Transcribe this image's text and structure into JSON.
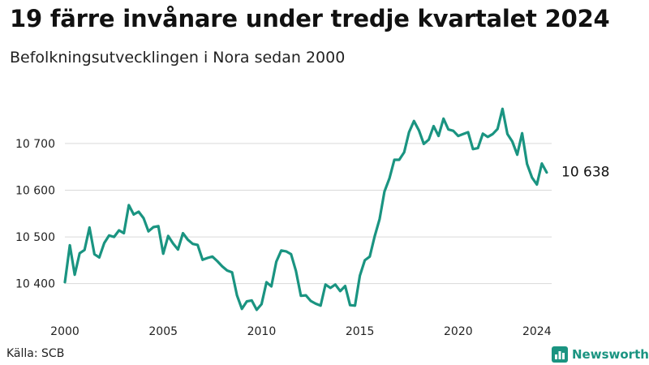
{
  "title": "19 färre invånare under tredje kvartalet 2024",
  "subtitle": "Befolkningsutvecklingen i Nora sedan 2000",
  "source": "Källa: SCB",
  "brand": {
    "name": "Newsworthy",
    "color": "#1a9481"
  },
  "colors": {
    "line": "#1a9481",
    "grid": "#d9d9d9"
  },
  "chart_data": {
    "type": "line",
    "title": "19 färre invånare under tredje kvartalet 2024",
    "subtitle": "Befolkningsutvecklingen i Nora sedan 2000",
    "xlabel": "",
    "ylabel": "",
    "grid": true,
    "xlim": [
      2000,
      2024.75
    ],
    "ylim": [
      10330,
      10790
    ],
    "x_ticks": [
      2000,
      2005,
      2010,
      2015,
      2020,
      2024
    ],
    "x_tick_labels": [
      "2000",
      "2005",
      "2010",
      "2015",
      "2020",
      "2024"
    ],
    "y_ticks": [
      10400,
      10500,
      10600,
      10700
    ],
    "y_tick_labels": [
      "10 400",
      "10 500",
      "10 600",
      "10 700"
    ],
    "end_label": "10 638",
    "x": [
      2000,
      2000.25,
      2000.5,
      2000.75,
      2001,
      2001.25,
      2001.5,
      2001.75,
      2002,
      2002.25,
      2002.5,
      2002.75,
      2003,
      2003.25,
      2003.5,
      2003.75,
      2004,
      2004.25,
      2004.5,
      2004.75,
      2005,
      2005.25,
      2005.5,
      2005.75,
      2006,
      2006.25,
      2006.5,
      2006.75,
      2007,
      2007.25,
      2007.5,
      2007.75,
      2008,
      2008.25,
      2008.5,
      2008.75,
      2009,
      2009.25,
      2009.5,
      2009.75,
      2010,
      2010.25,
      2010.5,
      2010.75,
      2011,
      2011.25,
      2011.5,
      2011.75,
      2012,
      2012.25,
      2012.5,
      2012.75,
      2013,
      2013.25,
      2013.5,
      2013.75,
      2014,
      2014.25,
      2014.5,
      2014.75,
      2015,
      2015.25,
      2015.5,
      2015.75,
      2016,
      2016.25,
      2016.5,
      2016.75,
      2017,
      2017.25,
      2017.5,
      2017.75,
      2018,
      2018.25,
      2018.5,
      2018.75,
      2019,
      2019.25,
      2019.5,
      2019.75,
      2020,
      2020.25,
      2020.5,
      2020.75,
      2021,
      2021.25,
      2021.5,
      2021.75,
      2022,
      2022.25,
      2022.5,
      2022.75,
      2023,
      2023.25,
      2023.5,
      2023.75,
      2024,
      2024.25,
      2024.5
    ],
    "series": [
      {
        "values": [
          10403,
          10482,
          10419,
          10465,
          10472,
          10520,
          10463,
          10456,
          10487,
          10503,
          10500,
          10514,
          10508,
          10568,
          10548,
          10554,
          10540,
          10512,
          10521,
          10523,
          10464,
          10502,
          10486,
          10473,
          10508,
          10494,
          10485,
          10483,
          10451,
          10455,
          10458,
          10448,
          10437,
          10428,
          10424,
          10375,
          10346,
          10362,
          10364,
          10344,
          10356,
          10403,
          10394,
          10447,
          10471,
          10469,
          10463,
          10427,
          10374,
          10375,
          10363,
          10357,
          10353,
          10398,
          10391,
          10398,
          10384,
          10395,
          10354,
          10353,
          10417,
          10450,
          10458,
          10501,
          10538,
          10597,
          10625,
          10665,
          10665,
          10681,
          10724,
          10748,
          10728,
          10699,
          10708,
          10737,
          10716,
          10753,
          10730,
          10727,
          10716,
          10720,
          10724,
          10688,
          10690,
          10721,
          10714,
          10720,
          10731,
          10774,
          10720,
          10704,
          10676,
          10722,
          10656,
          10627,
          10612,
          10657,
          10638
        ]
      }
    ]
  }
}
